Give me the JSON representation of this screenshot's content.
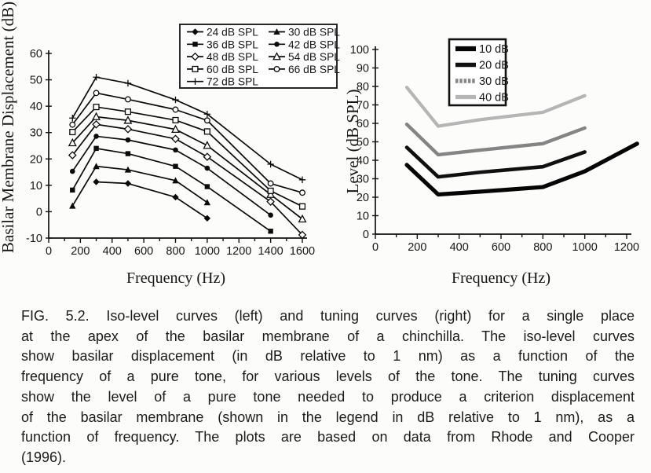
{
  "figure_caption": {
    "lines": [
      "FIG. 5.2. Iso-level curves (left) and tuning curves (right) for a single place",
      "at the apex of the basilar membrane of a chinchilla. The iso-level curves",
      "show basilar displacement (in dB relative to 1 nm) as a function of the",
      "frequency of a pure tone, for various levels of the tone. The tuning curves",
      "show the level of a pure tone needed to produce a criterion displacement",
      "of the basilar membrane (shown in the legend in dB relative to 1 nm), as a",
      "function of frequency. The plots are based on data from Rhode and Cooper",
      "(1996)."
    ]
  },
  "chart_data": [
    {
      "type": "line",
      "xlabel": "Frequency (Hz)",
      "ylabel": "Basilar Membrane Displacement (dB)",
      "xlim": [
        0,
        1600
      ],
      "ylim": [
        -10,
        60
      ],
      "xticks": [
        0,
        200,
        400,
        600,
        800,
        1000,
        1200,
        1400,
        1600
      ],
      "minor_xtick_step": 100,
      "yticks": [
        -10,
        0,
        10,
        20,
        30,
        40,
        50,
        60
      ],
      "grid": false,
      "legend_position": "top-right-inside",
      "series": [
        {
          "name": "24 dB SPL",
          "marker": "filled-diamond",
          "color": "#0a0a0a",
          "x": [
            300,
            500,
            800,
            1000
          ],
          "y": [
            11.3,
            10.7,
            5.5,
            -2.5
          ]
        },
        {
          "name": "30 dB SPL",
          "marker": "filled-triangle",
          "color": "#0a0a0a",
          "x": [
            150,
            300,
            500,
            800,
            1000
          ],
          "y": [
            2.2,
            17.2,
            15.9,
            11.8,
            3.5
          ]
        },
        {
          "name": "36 dB SPL",
          "marker": "filled-square",
          "color": "#0a0a0a",
          "x": [
            150,
            300,
            500,
            800,
            1000,
            1400
          ],
          "y": [
            8.2,
            24.0,
            22.0,
            17.2,
            9.5,
            -7.4
          ]
        },
        {
          "name": "42 dB SPL",
          "marker": "filled-circle",
          "color": "#0a0a0a",
          "x": [
            150,
            300,
            500,
            800,
            1000,
            1400
          ],
          "y": [
            15.3,
            28.6,
            27.2,
            23.4,
            16.5,
            -1.3
          ]
        },
        {
          "name": "48 dB SPL",
          "marker": "open-diamond",
          "color": "#0a0a0a",
          "x": [
            150,
            300,
            500,
            800,
            1000,
            1400,
            1600
          ],
          "y": [
            21.4,
            33.1,
            31.3,
            27.6,
            20.8,
            3.8,
            -8.8
          ]
        },
        {
          "name": "54 dB SPL",
          "marker": "open-triangle",
          "color": "#0a0a0a",
          "x": [
            150,
            300,
            500,
            800,
            1000,
            1400,
            1600
          ],
          "y": [
            26.1,
            36.0,
            34.6,
            31.2,
            25.1,
            6.5,
            -2.8
          ]
        },
        {
          "name": "60 dB SPL",
          "marker": "open-square",
          "color": "#0a0a0a",
          "x": [
            150,
            300,
            500,
            800,
            1000,
            1400,
            1600
          ],
          "y": [
            30.2,
            39.7,
            37.9,
            34.7,
            30.4,
            7.9,
            2.0
          ]
        },
        {
          "name": "66 dB SPL",
          "marker": "open-circle",
          "color": "#0a0a0a",
          "x": [
            150,
            300,
            500,
            800,
            1000,
            1400,
            1600
          ],
          "y": [
            33.0,
            45.0,
            42.6,
            38.7,
            34.6,
            10.7,
            7.2
          ]
        },
        {
          "name": "72 dB SPL",
          "marker": "plus",
          "color": "#0a0a0a",
          "x": [
            150,
            300,
            500,
            800,
            1000,
            1400,
            1600
          ],
          "y": [
            35.5,
            51.0,
            48.7,
            42.4,
            37.0,
            18.0,
            12.1
          ]
        }
      ]
    },
    {
      "type": "line",
      "xlabel": "Frequency (Hz)",
      "ylabel": "Level (dB SPL)",
      "xlim": [
        0,
        1200
      ],
      "ylim": [
        0,
        100
      ],
      "xticks": [
        0,
        200,
        400,
        600,
        800,
        1000,
        1200
      ],
      "minor_xtick_step": 100,
      "yticks": [
        0,
        10,
        20,
        30,
        40,
        50,
        60,
        70,
        80,
        90,
        100
      ],
      "grid": false,
      "legend_position": "top-center-inside",
      "series": [
        {
          "name": "10 dB",
          "color": "#050505",
          "width": 5.2,
          "x": [
            150,
            300,
            500,
            800,
            1000,
            1250
          ],
          "y": [
            37.5,
            21.5,
            23.0,
            25.5,
            34.0,
            49.0
          ]
        },
        {
          "name": "20 dB",
          "color": "#101010",
          "width": 4.6,
          "x": [
            150,
            300,
            500,
            800,
            1000
          ],
          "y": [
            47.0,
            31.0,
            33.5,
            36.5,
            44.5
          ]
        },
        {
          "name": "30 dB",
          "color": "#848484",
          "width": 4.4,
          "legend_dash": true,
          "x": [
            150,
            300,
            500,
            800,
            1000
          ],
          "y": [
            59.5,
            43.0,
            45.5,
            49.0,
            57.5
          ]
        },
        {
          "name": "40 dB",
          "color": "#b5b5b5",
          "width": 4.2,
          "x": [
            150,
            300,
            500,
            800,
            1000
          ],
          "y": [
            79.5,
            58.5,
            62.0,
            66.0,
            75.0
          ]
        }
      ]
    }
  ]
}
